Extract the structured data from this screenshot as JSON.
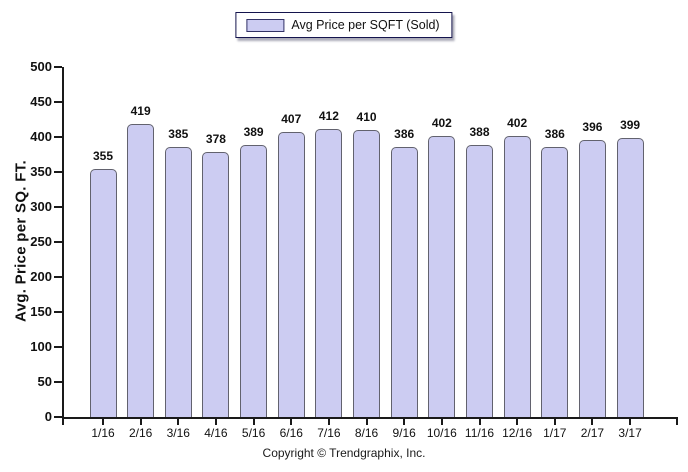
{
  "chart_data": {
    "type": "bar",
    "title": "",
    "legend_label": "Avg Price per SQFT (Sold)",
    "legend_position": "top-center",
    "categories": [
      "1/16",
      "2/16",
      "3/16",
      "4/16",
      "5/16",
      "6/16",
      "7/16",
      "8/16",
      "9/16",
      "10/16",
      "11/16",
      "12/16",
      "1/17",
      "2/17",
      "3/17"
    ],
    "values": [
      355,
      419,
      385,
      378,
      389,
      407,
      412,
      410,
      386,
      402,
      388,
      402,
      386,
      396,
      399
    ],
    "xlabel": "",
    "ylabel": "Avg. Price per SQ. FT.",
    "ylim": [
      0,
      500
    ],
    "ytick_step": 50,
    "grid": false,
    "bar_fill": "#ccccf2",
    "bar_border": "#62626e",
    "axis_color": "#1a1a1a"
  },
  "footer": {
    "copyright": "Copyright © Trendgraphix, Inc."
  }
}
